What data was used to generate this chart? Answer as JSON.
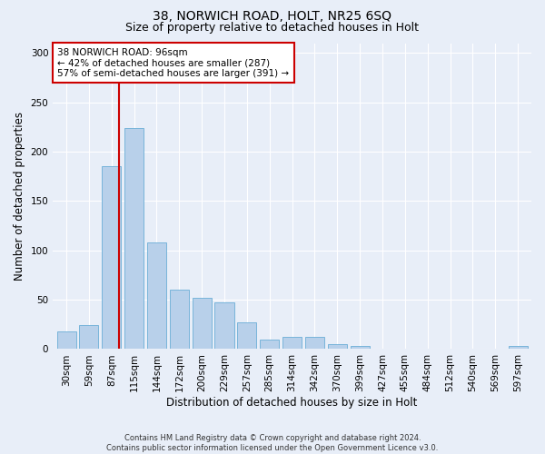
{
  "title1": "38, NORWICH ROAD, HOLT, NR25 6SQ",
  "title2": "Size of property relative to detached houses in Holt",
  "xlabel": "Distribution of detached houses by size in Holt",
  "ylabel": "Number of detached properties",
  "footer": "Contains HM Land Registry data © Crown copyright and database right 2024.\nContains public sector information licensed under the Open Government Licence v3.0.",
  "annotation_title": "38 NORWICH ROAD: 96sqm",
  "annotation_line1": "← 42% of detached houses are smaller (287)",
  "annotation_line2": "57% of semi-detached houses are larger (391) →",
  "bar_labels": [
    "30sqm",
    "59sqm",
    "87sqm",
    "115sqm",
    "144sqm",
    "172sqm",
    "200sqm",
    "229sqm",
    "257sqm",
    "285sqm",
    "314sqm",
    "342sqm",
    "370sqm",
    "399sqm",
    "427sqm",
    "455sqm",
    "484sqm",
    "512sqm",
    "540sqm",
    "569sqm",
    "597sqm"
  ],
  "bar_values": [
    18,
    24,
    185,
    224,
    108,
    60,
    52,
    47,
    27,
    10,
    12,
    12,
    5,
    3,
    0,
    0,
    0,
    0,
    0,
    0,
    3
  ],
  "bar_color": "#b8d0ea",
  "bar_edge_color": "#6aaed6",
  "vline_color": "#cc0000",
  "vline_pos": 2.33,
  "annotation_box_color": "#ffffff",
  "annotation_box_edgecolor": "#cc0000",
  "background_color": "#e8eef8",
  "plot_bg_color": "#e8eef8",
  "ylim": [
    0,
    310
  ],
  "yticks": [
    0,
    50,
    100,
    150,
    200,
    250,
    300
  ],
  "title1_fontsize": 10,
  "title2_fontsize": 9,
  "ylabel_fontsize": 8.5,
  "xlabel_fontsize": 8.5,
  "tick_fontsize": 7.5,
  "annotation_fontsize": 7.5,
  "footer_fontsize": 6
}
